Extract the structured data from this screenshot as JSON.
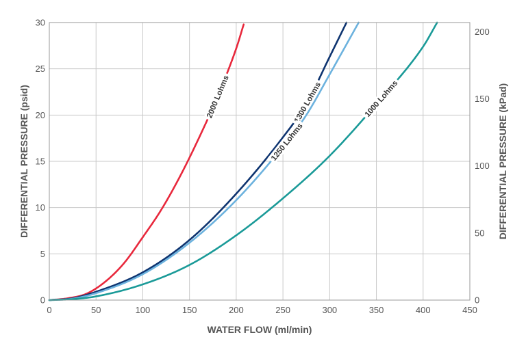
{
  "chart_data": {
    "type": "line",
    "xlabel": "WATER FLOW (ml/min)",
    "ylabel_left": "DIFFERENTIAL PRESSURE (psid)",
    "ylabel_right": "DIFFERENTIAL PRESSURE (kPad)",
    "xlim": [
      0,
      450
    ],
    "ylim_left": [
      0,
      30
    ],
    "ylim_right_kpa": [
      0,
      206.8
    ],
    "x_ticks": [
      "0",
      "50",
      "100",
      "150",
      "200",
      "250",
      "300",
      "350",
      "400",
      "450"
    ],
    "y_ticks_left": [
      "0",
      "5",
      "10",
      "15",
      "20",
      "25",
      "30"
    ],
    "y_ticks_right": [
      "0",
      "50",
      "100",
      "150",
      "200"
    ],
    "grid": true,
    "series": [
      {
        "name": "2000 Lohms",
        "color": "#e8283c",
        "label_at": 180,
        "points": [
          [
            0,
            0
          ],
          [
            20,
            0.2
          ],
          [
            40,
            0.7
          ],
          [
            60,
            2.0
          ],
          [
            80,
            4.0
          ],
          [
            100,
            6.8
          ],
          [
            120,
            9.8
          ],
          [
            140,
            13.4
          ],
          [
            160,
            17.5
          ],
          [
            180,
            22.0
          ],
          [
            200,
            27.2
          ],
          [
            208,
            29.8
          ]
        ]
      },
      {
        "name": "1300 Lohms",
        "color": "#0e3470",
        "label_at": 276,
        "points": [
          [
            0,
            0
          ],
          [
            25,
            0.2
          ],
          [
            50,
            0.9
          ],
          [
            100,
            3.0
          ],
          [
            150,
            6.5
          ],
          [
            200,
            11.5
          ],
          [
            250,
            17.6
          ],
          [
            275,
            21.2
          ],
          [
            300,
            26.3
          ],
          [
            318,
            30.0
          ]
        ]
      },
      {
        "name": "1250 Lohms",
        "color": "#6cb2de",
        "label_at": 254,
        "points": [
          [
            0,
            0
          ],
          [
            25,
            0.15
          ],
          [
            50,
            0.75
          ],
          [
            100,
            2.8
          ],
          [
            150,
            6.2
          ],
          [
            200,
            10.8
          ],
          [
            250,
            16.6
          ],
          [
            275,
            20.0
          ],
          [
            300,
            24.4
          ],
          [
            331,
            30.0
          ]
        ]
      },
      {
        "name": "1000 Lohms",
        "color": "#1a9a98",
        "label_at": 355,
        "points": [
          [
            0,
            0
          ],
          [
            25,
            0.1
          ],
          [
            50,
            0.4
          ],
          [
            100,
            1.7
          ],
          [
            150,
            3.8
          ],
          [
            200,
            7.0
          ],
          [
            250,
            11.0
          ],
          [
            300,
            15.6
          ],
          [
            350,
            21.2
          ],
          [
            400,
            27.4
          ],
          [
            415,
            30.0
          ]
        ]
      }
    ]
  }
}
